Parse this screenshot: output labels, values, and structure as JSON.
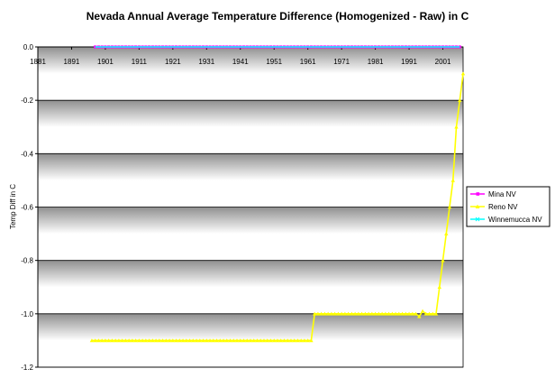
{
  "chart_data": {
    "type": "line",
    "title": "Nevada Annual Average Temperature Difference (Homogenized - Raw) in C",
    "ylabel": "Temp Diff in C",
    "xlabel": "",
    "ylim": [
      -1.2,
      0.0
    ],
    "yticks": [
      0.0,
      -0.2,
      -0.4,
      -0.6,
      -0.8,
      -1.0,
      -1.2
    ],
    "ytick_labels": [
      "0.0",
      "-0.2",
      "-0.4",
      "-0.6",
      "-0.8",
      "-1.0",
      "-1.2"
    ],
    "xlim": [
      1881,
      2007
    ],
    "xticks": [
      1881,
      1891,
      1901,
      1911,
      1921,
      1931,
      1941,
      1951,
      1961,
      1971,
      1981,
      1991,
      2001
    ],
    "x_axis_position": "top",
    "grid": "horizontal",
    "legend_position": "right",
    "series": [
      {
        "name": "Mina NV",
        "color": "#ff00ff",
        "marker": "square",
        "x": [
          1898,
          1900,
          1910,
          1920,
          1930,
          1940,
          1950,
          1960,
          1970,
          1980,
          1990,
          2000,
          2006
        ],
        "y": [
          0,
          0,
          0,
          0,
          0,
          0,
          0,
          0,
          0,
          0,
          0,
          0,
          0
        ]
      },
      {
        "name": "Reno NV",
        "color": "#ffff00",
        "marker": "triangle",
        "x": [
          1897,
          1962,
          1963,
          1993,
          1994,
          1995,
          1996,
          1997,
          1999,
          2000,
          2001,
          2002,
          2003,
          2004,
          2005,
          2006,
          2007
        ],
        "y": [
          -1.1,
          -1.1,
          -1.0,
          -1.0,
          -1.01,
          -0.99,
          -1.0,
          -1.0,
          -1.0,
          -0.9,
          -0.8,
          -0.7,
          -0.6,
          -0.5,
          -0.3,
          -0.2,
          -0.1
        ]
      },
      {
        "name": "Winnemucca NV",
        "color": "#00ffff",
        "marker": "x",
        "x": [
          1898,
          2006
        ],
        "y": [
          0,
          0
        ]
      }
    ]
  }
}
